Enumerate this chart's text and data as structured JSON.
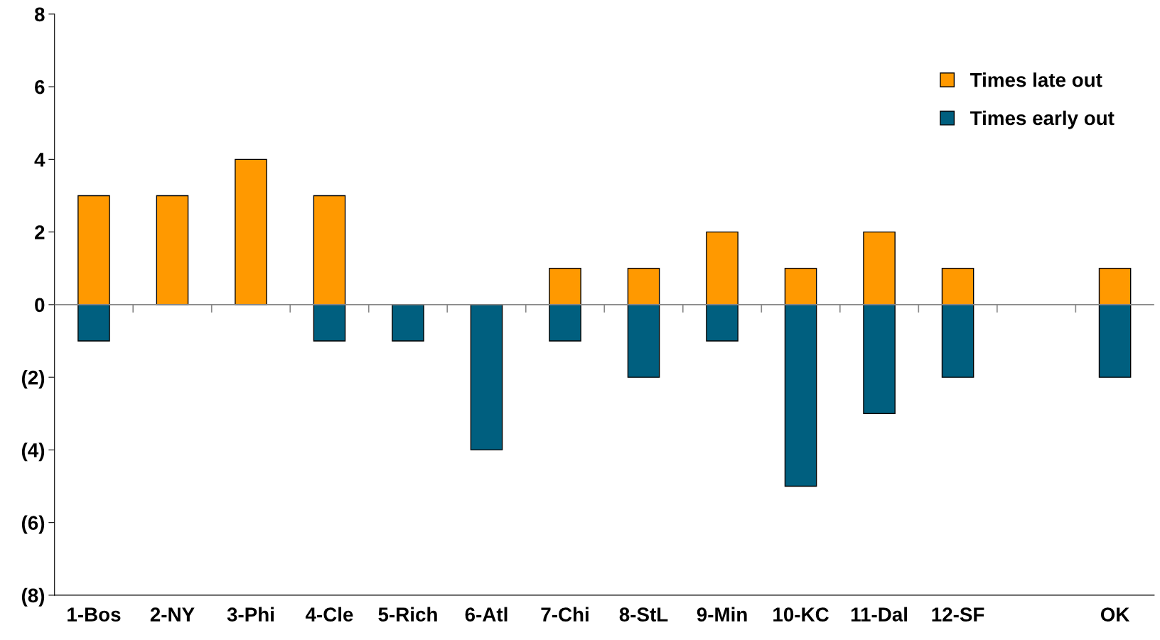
{
  "chart_data": {
    "type": "bar",
    "stacked": true,
    "categories": [
      "1-Bos",
      "2-NY",
      "3-Phi",
      "4-Cle",
      "5-Rich",
      "6-Atl",
      "7-Chi",
      "8-StL",
      "9-Min",
      "10-KC",
      "11-Dal",
      "12-SF",
      null,
      "OK"
    ],
    "series": [
      {
        "name": "Times late out",
        "color": "#ff9900",
        "values": [
          3,
          3,
          4,
          3,
          null,
          null,
          1,
          1,
          2,
          1,
          2,
          1,
          null,
          1
        ]
      },
      {
        "name": "Times early out",
        "color": "#005f7f",
        "values": [
          -1,
          null,
          null,
          -1,
          -1,
          -4,
          -1,
          -2,
          -1,
          -5,
          -3,
          -2,
          null,
          -2
        ]
      }
    ],
    "ylim": [
      -8,
      8
    ],
    "yticks": [
      {
        "value": -8,
        "label": "(8)"
      },
      {
        "value": -6,
        "label": "(6)"
      },
      {
        "value": -4,
        "label": "(4)"
      },
      {
        "value": -2,
        "label": "(2)"
      },
      0,
      2,
      4,
      6,
      8
    ],
    "legend": "top right"
  }
}
